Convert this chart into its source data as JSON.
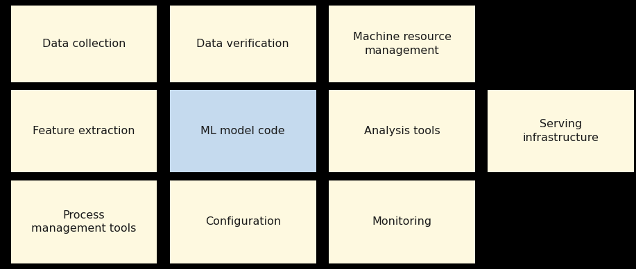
{
  "background_color": "#000000",
  "box_color_default": "#FEF9E0",
  "box_color_highlight": "#C5DAEE",
  "text_color": "#1a1a1a",
  "font_size": 11.5,
  "fig_width": 9.17,
  "fig_height": 3.89,
  "boxes": [
    {
      "label": "Data collection",
      "row": 0,
      "col": 0,
      "highlight": false
    },
    {
      "label": "Data verification",
      "row": 0,
      "col": 1,
      "highlight": false
    },
    {
      "label": "Machine resource\nmanagement",
      "row": 0,
      "col": 2,
      "highlight": false
    },
    {
      "label": "Feature extraction",
      "row": 1,
      "col": 0,
      "highlight": false
    },
    {
      "label": "ML model code",
      "row": 1,
      "col": 1,
      "highlight": true
    },
    {
      "label": "Analysis tools",
      "row": 1,
      "col": 2,
      "highlight": false
    },
    {
      "label": "Serving\ninfrastructure",
      "row": 1,
      "col": 3,
      "highlight": false
    },
    {
      "label": "Process\nmanagement tools",
      "row": 2,
      "col": 0,
      "highlight": false
    },
    {
      "label": "Configuration",
      "row": 2,
      "col": 1,
      "highlight": false
    },
    {
      "label": "Monitoring",
      "row": 2,
      "col": 2,
      "highlight": false
    }
  ],
  "col_starts": [
    0.017,
    0.267,
    0.517,
    0.767
  ],
  "col_ends": [
    0.247,
    0.497,
    0.747,
    0.997
  ],
  "row_starts": [
    0.02,
    0.36,
    0.695
  ],
  "row_ends": [
    0.33,
    0.665,
    0.98
  ]
}
